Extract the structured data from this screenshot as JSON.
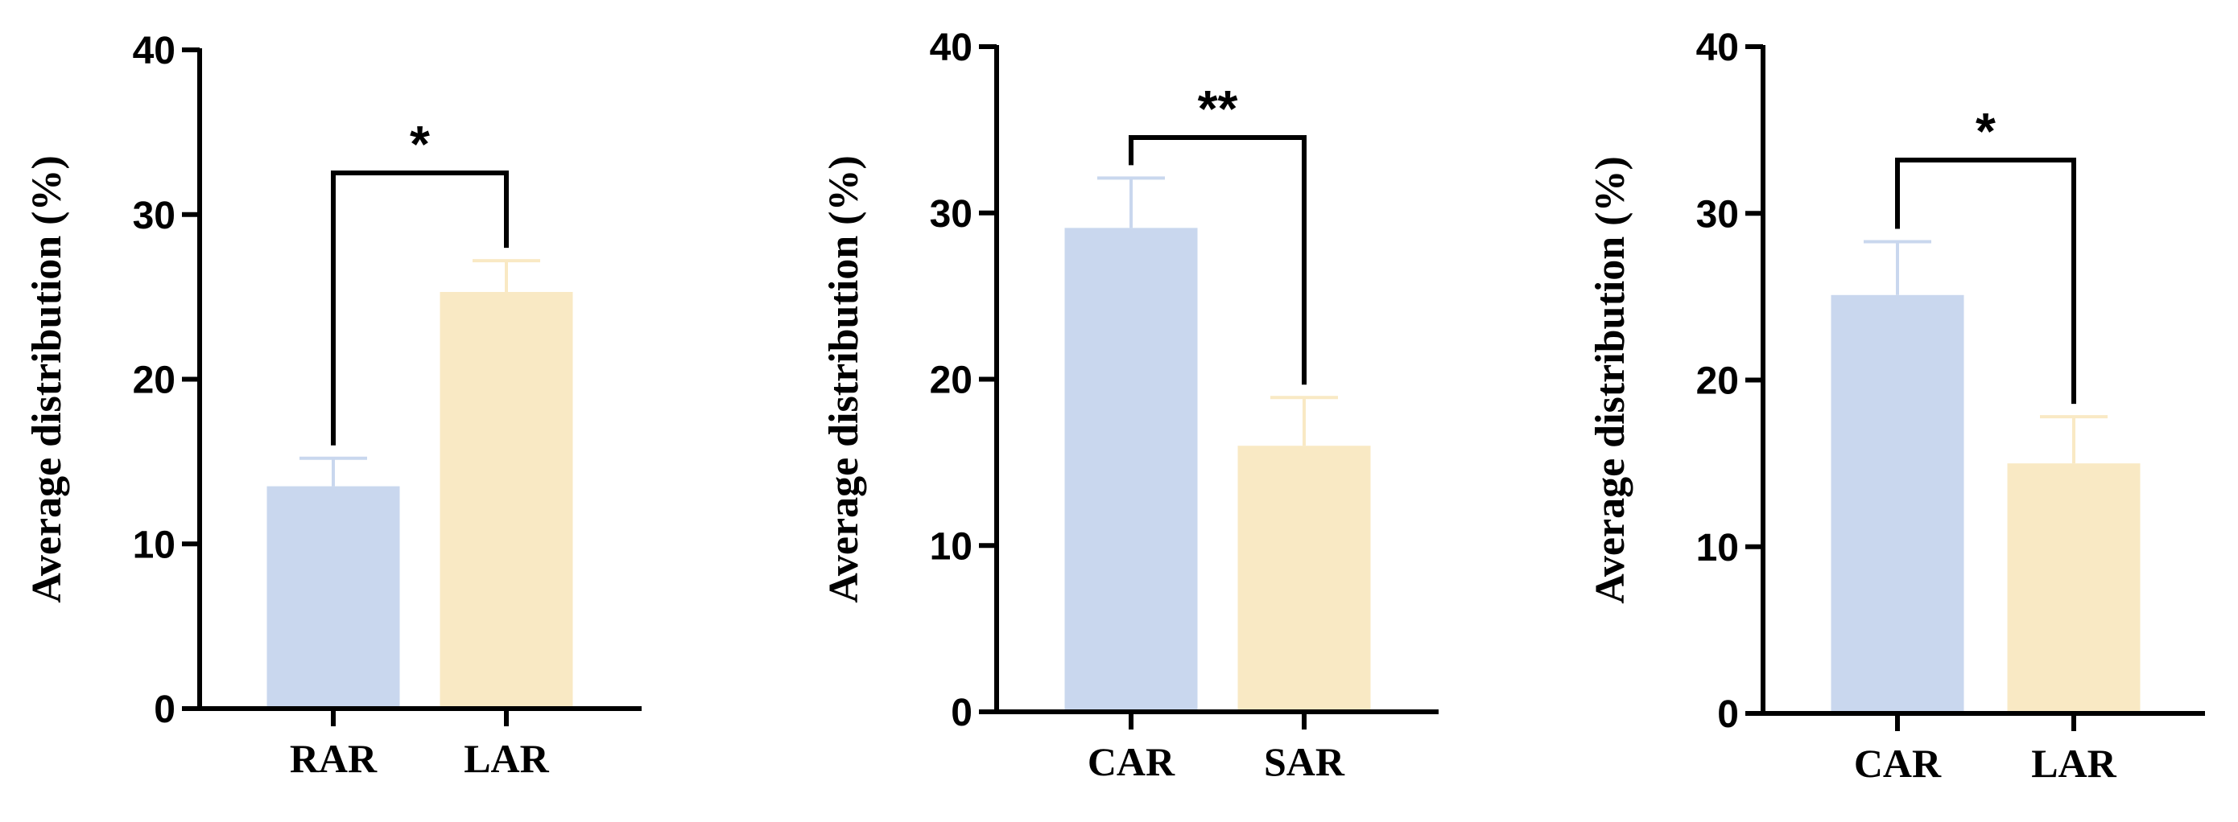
{
  "chart_data": [
    {
      "type": "bar",
      "categories": [
        "RAR",
        "LAR"
      ],
      "values": [
        13.5,
        25.3
      ],
      "errors": [
        1.7,
        1.9
      ],
      "ylabel": "Average distribution (%)",
      "ylim": [
        0,
        40
      ],
      "yticks": [
        0,
        10,
        20,
        30,
        40
      ],
      "significance": "*",
      "colors": [
        "#c9d7ee",
        "#f9e9c4"
      ]
    },
    {
      "type": "bar",
      "categories": [
        "CAR",
        "SAR"
      ],
      "values": [
        29.1,
        16.0
      ],
      "errors": [
        3.0,
        2.9
      ],
      "ylabel": "Average distribution (%)",
      "ylim": [
        0,
        40
      ],
      "yticks": [
        0,
        10,
        20,
        30,
        40
      ],
      "significance": "**",
      "colors": [
        "#c9d7ee",
        "#f9e9c4"
      ]
    },
    {
      "type": "bar",
      "categories": [
        "CAR",
        "LAR"
      ],
      "values": [
        25.1,
        15.0
      ],
      "errors": [
        3.2,
        2.8
      ],
      "ylabel": "Average distribution (%)",
      "ylim": [
        0,
        40
      ],
      "yticks": [
        0,
        10,
        20,
        30,
        40
      ],
      "significance": "*",
      "colors": [
        "#c9d7ee",
        "#f9e9c4"
      ]
    }
  ]
}
